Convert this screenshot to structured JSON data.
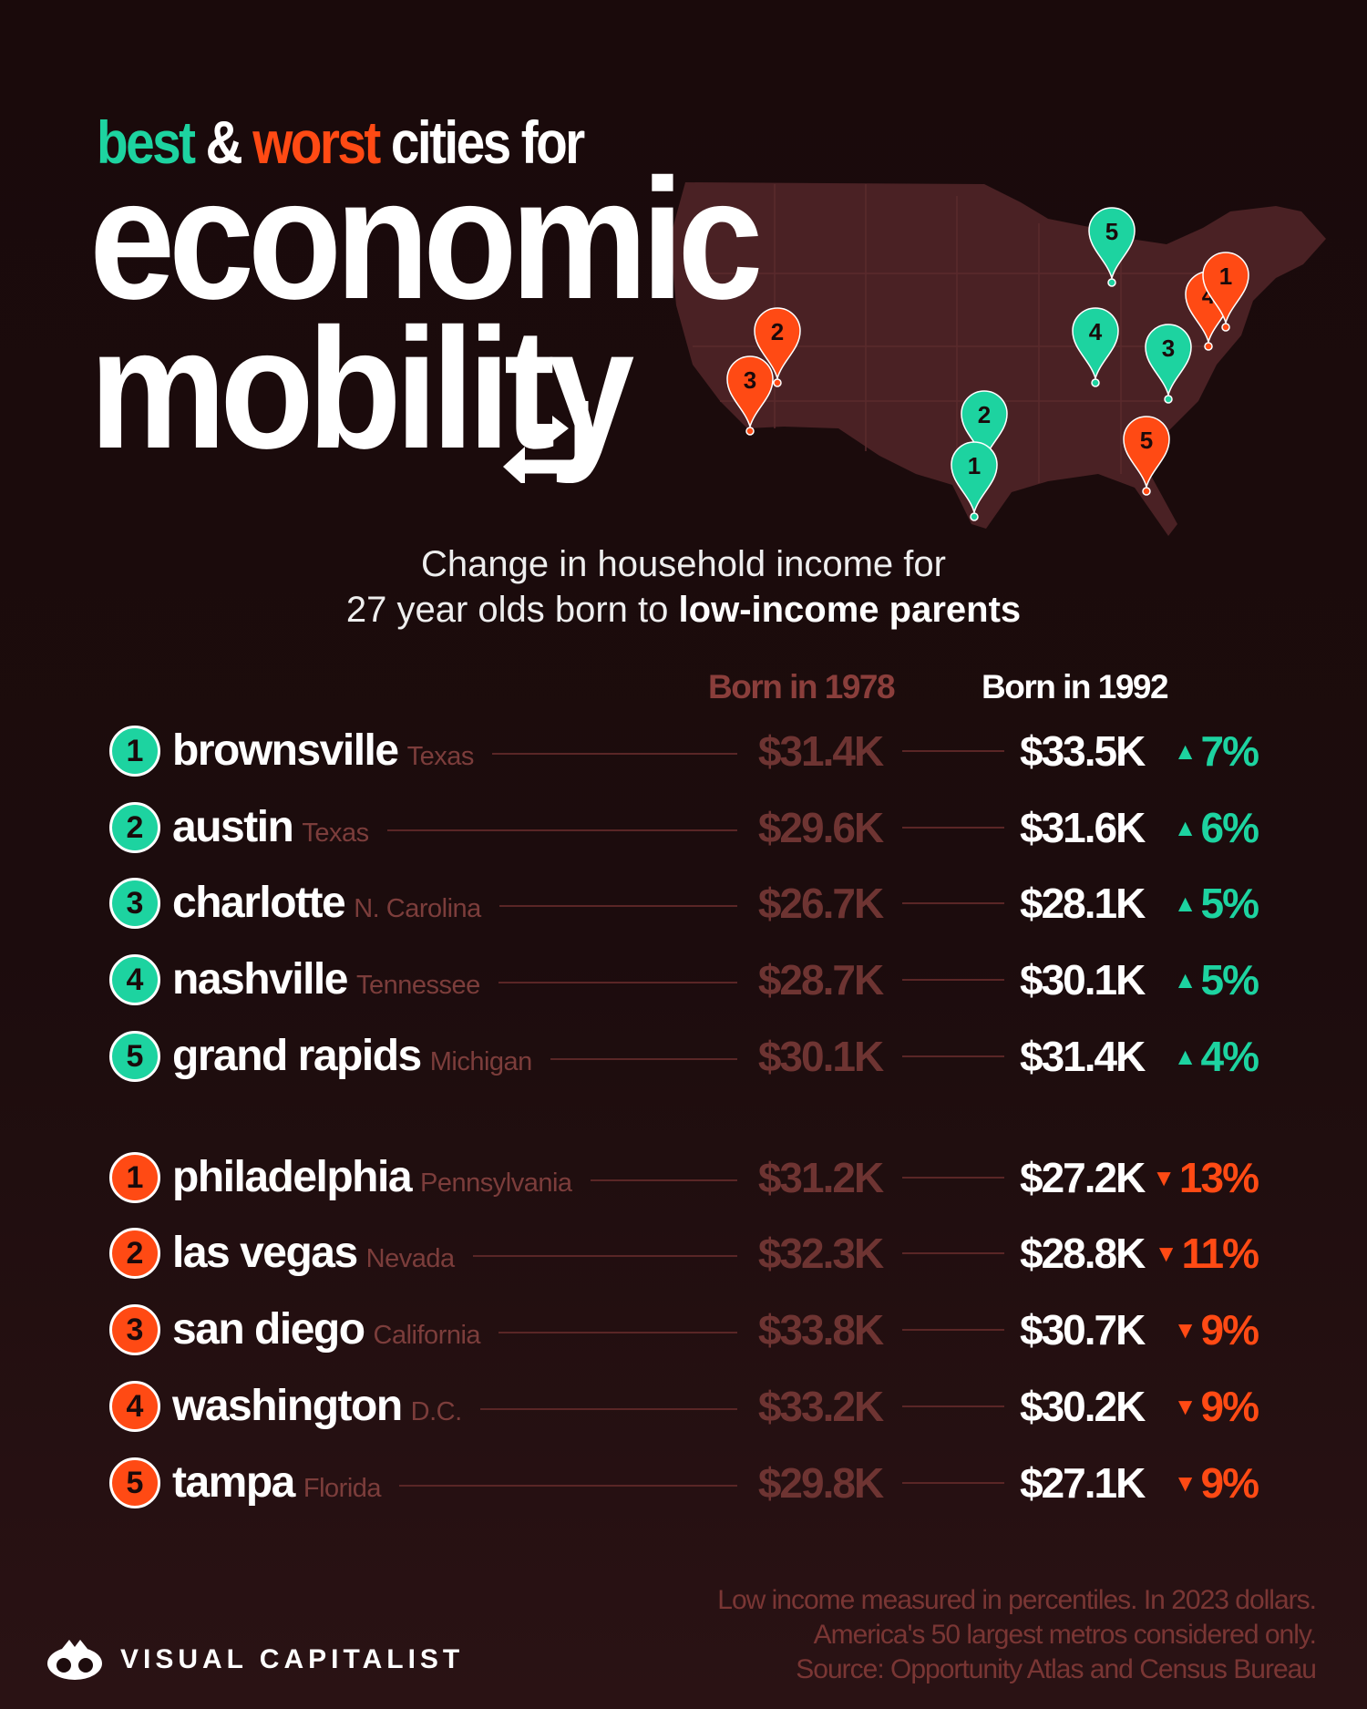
{
  "colors": {
    "best": "#1dd3a0",
    "worst": "#ff4a14",
    "map": "#4a2124",
    "muted": "#7c3d3b"
  },
  "title": {
    "kicker_best": "best",
    "kicker_amp": "&",
    "kicker_worst": "worst",
    "kicker_rest": "cities for",
    "line1": "economic",
    "line2": "mobility"
  },
  "subtitle": {
    "line1": "Change in household income for",
    "line2_plain": "27 year olds born to",
    "line2_bold": "low-income parents"
  },
  "columns": {
    "born_1978": "Born in 1978",
    "born_1992": "Born in 1992"
  },
  "best": [
    {
      "rank": "1",
      "city": "brownsville",
      "state": "Texas",
      "v1978": "$31.4K",
      "v1992": "$33.5K",
      "change": "7%",
      "direction": "up"
    },
    {
      "rank": "2",
      "city": "austin",
      "state": "Texas",
      "v1978": "$29.6K",
      "v1992": "$31.6K",
      "change": "6%",
      "direction": "up"
    },
    {
      "rank": "3",
      "city": "charlotte",
      "state": "N. Carolina",
      "v1978": "$26.7K",
      "v1992": "$28.1K",
      "change": "5%",
      "direction": "up"
    },
    {
      "rank": "4",
      "city": "nashville",
      "state": "Tennessee",
      "v1978": "$28.7K",
      "v1992": "$30.1K",
      "change": "5%",
      "direction": "up"
    },
    {
      "rank": "5",
      "city": "grand rapids",
      "state": "Michigan",
      "v1978": "$30.1K",
      "v1992": "$31.4K",
      "change": "4%",
      "direction": "up"
    }
  ],
  "worst": [
    {
      "rank": "1",
      "city": "philadelphia",
      "state": "Pennsylvania",
      "v1978": "$31.2K",
      "v1992": "$27.2K",
      "change": "13%",
      "direction": "down"
    },
    {
      "rank": "2",
      "city": "las vegas",
      "state": "Nevada",
      "v1978": "$32.3K",
      "v1992": "$28.8K",
      "change": "11%",
      "direction": "down"
    },
    {
      "rank": "3",
      "city": "san diego",
      "state": "California",
      "v1978": "$33.8K",
      "v1992": "$30.7K",
      "change": "9%",
      "direction": "down"
    },
    {
      "rank": "4",
      "city": "washington",
      "state": "D.C.",
      "v1978": "$33.2K",
      "v1992": "$30.2K",
      "change": "9%",
      "direction": "down"
    },
    {
      "rank": "5",
      "city": "tampa",
      "state": "Florida",
      "v1978": "$29.8K",
      "v1992": "$27.1K",
      "change": "9%",
      "direction": "down"
    }
  ],
  "map_pins": {
    "best": [
      "1",
      "2",
      "3",
      "4",
      "5"
    ],
    "worst": [
      "1",
      "2",
      "3",
      "4",
      "5"
    ]
  },
  "footer": {
    "notes": [
      "Low income measured in percentiles. In 2023 dollars.",
      "America's 50 largest metros considered only.",
      "Source: Opportunity Atlas and Census Bureau"
    ],
    "brand": "VISUAL CAPITALIST"
  }
}
